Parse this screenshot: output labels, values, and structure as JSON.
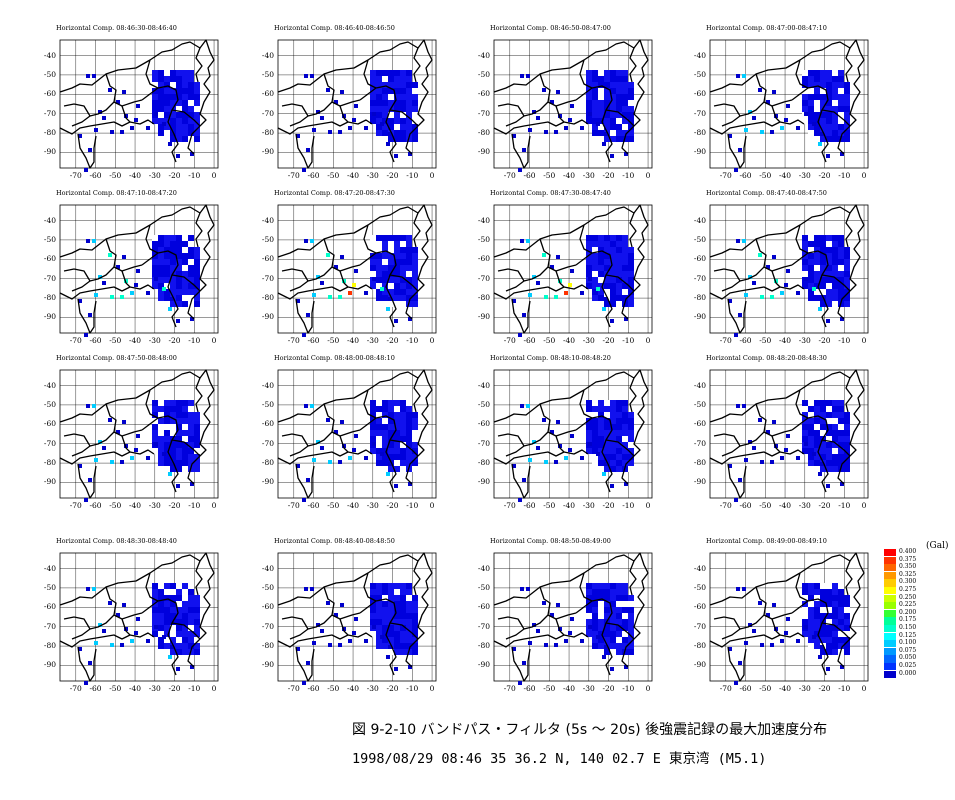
{
  "figure": {
    "caption_line1": "図 9-2-10  バンドパス・フィルタ (5s ～ 20s) 後強震記録の最大加速度分布",
    "caption_line2": "1998/08/29  08:46  35 36.2 N, 140 02.7 E  東京湾 (M5.1)"
  },
  "chart_data": [
    {
      "type": "heatmap",
      "title": "Horizontal Comp.  08:46:30-08:46:40",
      "xticks": [
        -70,
        -60,
        -50,
        -40,
        -30,
        -20,
        -10,
        0
      ],
      "yticks": [
        -40,
        -50,
        -60,
        -70,
        -80,
        -90
      ],
      "intensity": 0
    },
    {
      "type": "heatmap",
      "title": "Horizontal Comp.  08:46:40-08:46:50",
      "xticks": [
        -70,
        -60,
        -50,
        -40,
        -30,
        -20,
        -10,
        0
      ],
      "yticks": [
        -40,
        -50,
        -60,
        -70,
        -80,
        -90
      ],
      "intensity": 0
    },
    {
      "type": "heatmap",
      "title": "Horizontal Comp.  08:46:50-08:47:00",
      "xticks": [
        -70,
        -60,
        -50,
        -40,
        -30,
        -20,
        -10,
        0
      ],
      "yticks": [
        -40,
        -50,
        -60,
        -70,
        -80,
        -90
      ],
      "intensity": 0
    },
    {
      "type": "heatmap",
      "title": "Horizontal Comp.  08:47:00-08:47:10",
      "xticks": [
        -70,
        -60,
        -50,
        -40,
        -30,
        -20,
        -10,
        0
      ],
      "yticks": [
        -40,
        -50,
        -60,
        -70,
        -80,
        -90
      ],
      "intensity": 1
    },
    {
      "type": "heatmap",
      "title": "Horizontal Comp.  08:47:10-08:47:20",
      "xticks": [
        -70,
        -60,
        -50,
        -40,
        -30,
        -20,
        -10,
        0
      ],
      "yticks": [
        -40,
        -50,
        -60,
        -70,
        -80,
        -90
      ],
      "intensity": 2
    },
    {
      "type": "heatmap",
      "title": "Horizontal Comp.  08:47:20-08:47:30",
      "xticks": [
        -70,
        -60,
        -50,
        -40,
        -30,
        -20,
        -10,
        0
      ],
      "yticks": [
        -40,
        -50,
        -60,
        -70,
        -80,
        -90
      ],
      "intensity": 3
    },
    {
      "type": "heatmap",
      "title": "Horizontal Comp.  08:47:30-08:47:40",
      "xticks": [
        -70,
        -60,
        -50,
        -40,
        -30,
        -20,
        -10,
        0
      ],
      "yticks": [
        -40,
        -50,
        -60,
        -70,
        -80,
        -90
      ],
      "intensity": 3
    },
    {
      "type": "heatmap",
      "title": "Horizontal Comp.  08:47:40-08:47:50",
      "xticks": [
        -70,
        -60,
        -50,
        -40,
        -30,
        -20,
        -10,
        0
      ],
      "yticks": [
        -40,
        -50,
        -60,
        -70,
        -80,
        -90
      ],
      "intensity": 2
    },
    {
      "type": "heatmap",
      "title": "Horizontal Comp.  08:47:50-08:48:00",
      "xticks": [
        -70,
        -60,
        -50,
        -40,
        -30,
        -20,
        -10,
        0
      ],
      "yticks": [
        -40,
        -50,
        -60,
        -70,
        -80,
        -90
      ],
      "intensity": 1
    },
    {
      "type": "heatmap",
      "title": "Horizontal Comp.  08:48:00-08:48:10",
      "xticks": [
        -70,
        -60,
        -50,
        -40,
        -30,
        -20,
        -10,
        0
      ],
      "yticks": [
        -40,
        -50,
        -60,
        -70,
        -80,
        -90
      ],
      "intensity": 1
    },
    {
      "type": "heatmap",
      "title": "Horizontal Comp.  08:48:10-08:48:20",
      "xticks": [
        -70,
        -60,
        -50,
        -40,
        -30,
        -20,
        -10,
        0
      ],
      "yticks": [
        -40,
        -50,
        -60,
        -70,
        -80,
        -90
      ],
      "intensity": 1
    },
    {
      "type": "heatmap",
      "title": "Horizontal Comp.  08:48:20-08:48:30",
      "xticks": [
        -70,
        -60,
        -50,
        -40,
        -30,
        -20,
        -10,
        0
      ],
      "yticks": [
        -40,
        -50,
        -60,
        -70,
        -80,
        -90
      ],
      "intensity": 0
    },
    {
      "type": "heatmap",
      "title": "Horizontal Comp.  08:48:30-08:48:40",
      "xticks": [
        -70,
        -60,
        -50,
        -40,
        -30,
        -20,
        -10,
        0
      ],
      "yticks": [
        -40,
        -50,
        -60,
        -70,
        -80,
        -90
      ],
      "intensity": 1
    },
    {
      "type": "heatmap",
      "title": "Horizontal Comp.  08:48:40-08:48:50",
      "xticks": [
        -70,
        -60,
        -50,
        -40,
        -30,
        -20,
        -10,
        0
      ],
      "yticks": [
        -40,
        -50,
        -60,
        -70,
        -80,
        -90
      ],
      "intensity": 0
    },
    {
      "type": "heatmap",
      "title": "Horizontal Comp.  08:48:50-08:49:00",
      "xticks": [
        -70,
        -60,
        -50,
        -40,
        -30,
        -20,
        -10,
        0
      ],
      "yticks": [
        -40,
        -50,
        -60,
        -70,
        -80,
        -90
      ],
      "intensity": 0
    },
    {
      "type": "heatmap",
      "title": "Horizontal Comp.  08:49:00-08:49:10",
      "xticks": [
        -70,
        -60,
        -50,
        -40,
        -30,
        -20,
        -10,
        0
      ],
      "yticks": [
        -40,
        -50,
        -60,
        -70,
        -80,
        -90
      ],
      "intensity": 0
    }
  ],
  "legend": {
    "unit": "(Gal)",
    "levels": [
      {
        "label": "0.400",
        "color": "#ff0000"
      },
      {
        "label": "0.375",
        "color": "#ff3300"
      },
      {
        "label": "0.350",
        "color": "#ff6600"
      },
      {
        "label": "0.325",
        "color": "#ff9900"
      },
      {
        "label": "0.300",
        "color": "#ffcc00"
      },
      {
        "label": "0.275",
        "color": "#ffff00"
      },
      {
        "label": "0.250",
        "color": "#ccff00"
      },
      {
        "label": "0.225",
        "color": "#99ff00"
      },
      {
        "label": "0.200",
        "color": "#33ff33"
      },
      {
        "label": "0.175",
        "color": "#00ff99"
      },
      {
        "label": "0.150",
        "color": "#00ffcc"
      },
      {
        "label": "0.125",
        "color": "#00ffff"
      },
      {
        "label": "0.100",
        "color": "#00ccff"
      },
      {
        "label": "0.075",
        "color": "#0099ff"
      },
      {
        "label": "0.050",
        "color": "#0066ff"
      },
      {
        "label": "0.025",
        "color": "#0033ff"
      },
      {
        "label": "0.000",
        "color": "#0000cc"
      }
    ]
  }
}
